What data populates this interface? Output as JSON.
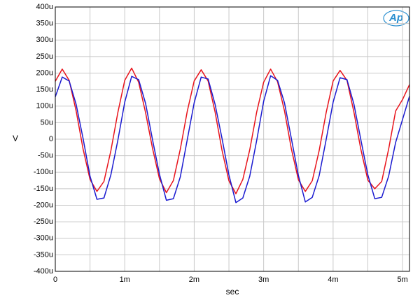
{
  "chart_data": {
    "type": "line",
    "logo": "Ap",
    "xlabel": "sec",
    "ylabel": "V",
    "xlim": [
      0,
      0.0051
    ],
    "ylim": [
      -0.0004,
      0.0004
    ],
    "xticks": [
      {
        "value": 0,
        "label": "0"
      },
      {
        "value": 0.001,
        "label": "1m"
      },
      {
        "value": 0.002,
        "label": "2m"
      },
      {
        "value": 0.003,
        "label": "3m"
      },
      {
        "value": 0.004,
        "label": "4m"
      },
      {
        "value": 0.005,
        "label": "5m"
      }
    ],
    "xgrid": [
      0.0005,
      0.0015,
      0.0025,
      0.0035,
      0.0045
    ],
    "yticks": [
      {
        "value": 0.0004,
        "label": "400u"
      },
      {
        "value": 0.00035,
        "label": "350u"
      },
      {
        "value": 0.0003,
        "label": "300u"
      },
      {
        "value": 0.00025,
        "label": "250u"
      },
      {
        "value": 0.0002,
        "label": "200u"
      },
      {
        "value": 0.00015,
        "label": "150u"
      },
      {
        "value": 0.0001,
        "label": "100u"
      },
      {
        "value": 5e-05,
        "label": "50u"
      },
      0,
      {
        "value": -5e-05,
        "label": "-50u"
      },
      {
        "value": -0.0001,
        "label": "-100u"
      },
      {
        "value": -0.00015,
        "label": "-150u"
      },
      {
        "value": -0.0002,
        "label": "-200u"
      },
      {
        "value": -0.00025,
        "label": "-250u"
      },
      {
        "value": -0.0003,
        "label": "-300u"
      },
      {
        "value": -0.00035,
        "label": "-350u"
      },
      {
        "value": -0.0004,
        "label": "-400u"
      }
    ],
    "grid": true,
    "x": [
      0,
      0.0001,
      0.0002,
      0.0003,
      0.0004,
      0.0005,
      0.0006,
      0.0007,
      0.0008,
      0.0009,
      0.001,
      0.0011,
      0.0012,
      0.0013,
      0.0014,
      0.0015,
      0.0016,
      0.0017,
      0.0018,
      0.0019,
      0.002,
      0.0021,
      0.0022,
      0.0023,
      0.0024,
      0.0025,
      0.0026,
      0.0027,
      0.0028,
      0.0029,
      0.003,
      0.0031,
      0.0032,
      0.0033,
      0.0034,
      0.0035,
      0.0036,
      0.0037,
      0.0038,
      0.0039,
      0.004,
      0.0041,
      0.0042,
      0.0043,
      0.0044,
      0.0045,
      0.0046,
      0.0047,
      0.0048,
      0.0049,
      0.005,
      0.0051
    ],
    "series": [
      {
        "name": "red",
        "color": "#e8141c",
        "values": [
          0.000175,
          0.000212,
          0.000178,
          8.5e-05,
          -3e-05,
          -0.000122,
          -0.000158,
          -0.000128,
          -3.5e-05,
          8e-05,
          0.000178,
          0.000215,
          0.000172,
          8e-05,
          -2.8e-05,
          -0.00012,
          -0.000162,
          -0.000125,
          -3e-05,
          8.4e-05,
          0.000176,
          0.00021,
          0.000176,
          8.3e-05,
          -3.3e-05,
          -0.000126,
          -0.000165,
          -0.000122,
          -3.2e-05,
          8.2e-05,
          0.000172,
          0.000212,
          0.000174,
          8.6e-05,
          -3e-05,
          -0.000123,
          -0.000158,
          -0.000126,
          -3.4e-05,
          8e-05,
          0.000176,
          0.000208,
          0.000178,
          8.2e-05,
          -3.1e-05,
          -0.000124,
          -0.00015,
          -0.000128,
          -3e-05,
          8.5e-05,
          0.00012,
          0.000165
        ]
      },
      {
        "name": "blue",
        "color": "#1a1ad0",
        "values": [
          0.000128,
          0.000188,
          0.000176,
          0.000105,
          2e-06,
          -0.000112,
          -0.000182,
          -0.000178,
          -0.000108,
          -4e-06,
          0.000112,
          0.00019,
          0.00018,
          0.000108,
          -2e-06,
          -0.000106,
          -0.000185,
          -0.00018,
          -0.000114,
          -2e-06,
          0.00011,
          0.000188,
          0.000182,
          0.000106,
          3e-06,
          -0.000108,
          -0.000192,
          -0.000178,
          -0.000112,
          -4e-06,
          0.000114,
          0.000192,
          0.000178,
          0.00011,
          1e-06,
          -0.00011,
          -0.00019,
          -0.000176,
          -0.00011,
          -2e-06,
          0.000112,
          0.000186,
          0.00018,
          0.000106,
          -2e-06,
          -0.000108,
          -0.00018,
          -0.000176,
          -0.000112,
          -1e-05,
          6e-05,
          0.00013
        ]
      }
    ]
  }
}
